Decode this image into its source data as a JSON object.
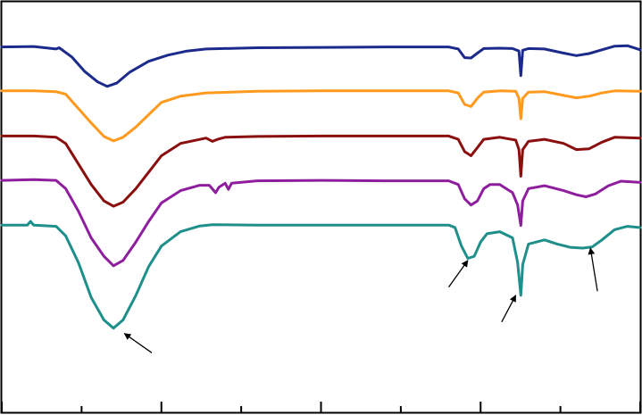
{
  "chart_data": {
    "type": "line",
    "title": "",
    "xlabel": "",
    "ylabel": "",
    "xlim": [
      0,
      100
    ],
    "ylim": [
      0,
      100
    ],
    "grid": false,
    "legend": "none",
    "ticks": {
      "x_major": [
        0,
        25,
        50,
        75,
        100
      ],
      "x_minor": [
        12.5,
        37.5,
        62.5,
        87.5
      ]
    },
    "series": [
      {
        "color": "#1c2a8c",
        "points": [
          [
            0,
            89.0
          ],
          [
            5,
            89.1
          ],
          [
            8.5,
            88.5
          ],
          [
            9,
            88.8
          ],
          [
            11,
            86.5
          ],
          [
            13,
            83.0
          ],
          [
            15,
            80.5
          ],
          [
            16.5,
            79.4
          ],
          [
            18,
            80.2
          ],
          [
            20,
            82.8
          ],
          [
            23,
            85.5
          ],
          [
            26,
            87.0
          ],
          [
            29,
            88.0
          ],
          [
            32,
            88.5
          ],
          [
            40,
            88.8
          ],
          [
            50,
            88.9
          ],
          [
            60,
            89.0
          ],
          [
            70,
            89.0
          ],
          [
            71.5,
            88.5
          ],
          [
            72.5,
            86.4
          ],
          [
            73.5,
            86.3
          ],
          [
            74.5,
            87.5
          ],
          [
            75.5,
            88.6
          ],
          [
            78,
            88.7
          ],
          [
            80,
            88.6
          ],
          [
            81,
            88.0
          ],
          [
            81.3,
            82.0
          ],
          [
            81.6,
            88.2
          ],
          [
            82.5,
            88.6
          ],
          [
            85,
            88.5
          ],
          [
            88,
            87.5
          ],
          [
            90,
            86.9
          ],
          [
            92,
            87.4
          ],
          [
            94,
            88.3
          ],
          [
            96,
            89.2
          ],
          [
            98,
            89.3
          ],
          [
            100,
            88.3
          ]
        ]
      },
      {
        "color": "#ff9a1f",
        "points": [
          [
            0,
            78.3
          ],
          [
            5,
            78.3
          ],
          [
            8.5,
            78.1
          ],
          [
            10,
            77.5
          ],
          [
            12,
            74.0
          ],
          [
            14,
            70.5
          ],
          [
            16,
            67.2
          ],
          [
            17.5,
            66.1
          ],
          [
            19,
            67.0
          ],
          [
            21,
            69.5
          ],
          [
            23,
            72.5
          ],
          [
            25,
            75.5
          ],
          [
            28,
            77.0
          ],
          [
            32,
            77.8
          ],
          [
            40,
            78.2
          ],
          [
            50,
            78.3
          ],
          [
            60,
            78.3
          ],
          [
            70,
            78.3
          ],
          [
            71.5,
            77.8
          ],
          [
            72.5,
            75.0
          ],
          [
            73.5,
            74.5
          ],
          [
            74.5,
            76.5
          ],
          [
            75.5,
            78.0
          ],
          [
            78,
            78.3
          ],
          [
            80.5,
            78.2
          ],
          [
            81,
            76.5
          ],
          [
            81.3,
            71.5
          ],
          [
            81.6,
            76.5
          ],
          [
            82.5,
            78.0
          ],
          [
            85,
            78.1
          ],
          [
            88,
            77.2
          ],
          [
            90,
            76.6
          ],
          [
            92,
            77.0
          ],
          [
            94,
            77.8
          ],
          [
            96,
            78.3
          ],
          [
            100,
            78.2
          ]
        ]
      },
      {
        "color": "#8a0f0f",
        "points": [
          [
            0,
            67.3
          ],
          [
            5,
            67.3
          ],
          [
            8.5,
            67.0
          ],
          [
            10,
            65.5
          ],
          [
            12,
            60.5
          ],
          [
            14,
            55.5
          ],
          [
            16,
            51.5
          ],
          [
            17.5,
            50.2
          ],
          [
            19,
            51.2
          ],
          [
            21,
            54.5
          ],
          [
            23,
            58.5
          ],
          [
            25,
            62.5
          ],
          [
            28,
            65.5
          ],
          [
            32,
            66.8
          ],
          [
            33,
            66.0
          ],
          [
            33.8,
            66.5
          ],
          [
            35,
            67.0
          ],
          [
            40,
            67.2
          ],
          [
            50,
            67.3
          ],
          [
            60,
            67.3
          ],
          [
            70,
            67.3
          ],
          [
            71.5,
            66.5
          ],
          [
            72.5,
            63.5
          ],
          [
            73.5,
            62.5
          ],
          [
            74.5,
            64.5
          ],
          [
            75.5,
            66.5
          ],
          [
            78,
            67.0
          ],
          [
            80.5,
            66.3
          ],
          [
            81,
            64.0
          ],
          [
            81.3,
            57.5
          ],
          [
            81.6,
            64.0
          ],
          [
            82.5,
            66.0
          ],
          [
            85,
            66.5
          ],
          [
            88,
            65.5
          ],
          [
            90,
            64.0
          ],
          [
            92,
            64.2
          ],
          [
            94,
            65.8
          ],
          [
            96,
            67.0
          ],
          [
            100,
            66.8
          ]
        ]
      },
      {
        "color": "#8e1e9e",
        "points": [
          [
            0,
            56.5
          ],
          [
            5,
            56.7
          ],
          [
            8.5,
            56.5
          ],
          [
            10,
            54.5
          ],
          [
            12,
            49.0
          ],
          [
            14,
            42.5
          ],
          [
            16,
            38.0
          ],
          [
            17.5,
            35.7
          ],
          [
            19,
            37.0
          ],
          [
            21,
            41.5
          ],
          [
            23,
            46.5
          ],
          [
            25,
            51.0
          ],
          [
            28,
            54.0
          ],
          [
            31,
            55.3
          ],
          [
            32.5,
            55.3
          ],
          [
            33.5,
            53.5
          ],
          [
            34,
            54.8
          ],
          [
            35,
            55.8
          ],
          [
            35.5,
            54.3
          ],
          [
            36,
            55.8
          ],
          [
            40,
            56.4
          ],
          [
            50,
            56.5
          ],
          [
            60,
            56.4
          ],
          [
            70,
            56.4
          ],
          [
            71.5,
            55.5
          ],
          [
            72.5,
            52.0
          ],
          [
            73.5,
            50.5
          ],
          [
            74.5,
            51.5
          ],
          [
            75.5,
            54.5
          ],
          [
            76.5,
            55.5
          ],
          [
            78,
            55.5
          ],
          [
            80,
            53.5
          ],
          [
            80.8,
            50.5
          ],
          [
            81.3,
            45.5
          ],
          [
            81.6,
            51.5
          ],
          [
            82.5,
            54.5
          ],
          [
            85,
            55.2
          ],
          [
            88,
            54.0
          ],
          [
            90,
            53.0
          ],
          [
            91.5,
            52.5
          ],
          [
            93,
            53.2
          ],
          [
            95,
            55.2
          ],
          [
            97,
            56.3
          ],
          [
            100,
            56.0
          ]
        ]
      },
      {
        "color": "#1e8f8a",
        "points": [
          [
            0,
            45.6
          ],
          [
            4,
            45.6
          ],
          [
            4.5,
            46.5
          ],
          [
            5,
            45.6
          ],
          [
            8.5,
            45.3
          ],
          [
            10,
            43.0
          ],
          [
            12,
            36.5
          ],
          [
            14,
            28.0
          ],
          [
            16,
            22.5
          ],
          [
            17.5,
            20.5
          ],
          [
            19,
            22.5
          ],
          [
            21,
            28.5
          ],
          [
            23,
            35.5
          ],
          [
            25,
            40.5
          ],
          [
            28,
            44.0
          ],
          [
            31,
            45.4
          ],
          [
            33,
            45.7
          ],
          [
            40,
            45.6
          ],
          [
            50,
            45.6
          ],
          [
            60,
            45.6
          ],
          [
            70,
            45.6
          ],
          [
            71,
            45.0
          ],
          [
            72,
            40.5
          ],
          [
            73,
            37.5
          ],
          [
            74,
            38.0
          ],
          [
            75,
            41.5
          ],
          [
            76,
            43.5
          ],
          [
            78,
            44.0
          ],
          [
            80,
            42.5
          ],
          [
            80.8,
            36.5
          ],
          [
            81.3,
            28.5
          ],
          [
            81.6,
            36.0
          ],
          [
            82.5,
            41.0
          ],
          [
            85,
            42.0
          ],
          [
            87,
            41.0
          ],
          [
            89,
            40.2
          ],
          [
            91,
            40.0
          ],
          [
            92.5,
            40.3
          ],
          [
            94,
            42.0
          ],
          [
            96,
            44.5
          ],
          [
            98,
            45.3
          ],
          [
            100,
            45.0
          ]
        ]
      }
    ],
    "annotations": [
      {
        "type": "arrow",
        "from": [
          23.5,
          14.5
        ],
        "to": [
          19.2,
          19.2
        ]
      },
      {
        "type": "arrow",
        "from": [
          70.0,
          30.5
        ],
        "to": [
          73.0,
          37.0
        ]
      },
      {
        "type": "arrow",
        "from": [
          78.3,
          22.0
        ],
        "to": [
          80.5,
          28.5
        ]
      },
      {
        "type": "arrow",
        "from": [
          93.3,
          29.5
        ],
        "to": [
          92.2,
          40.0
        ]
      }
    ]
  }
}
